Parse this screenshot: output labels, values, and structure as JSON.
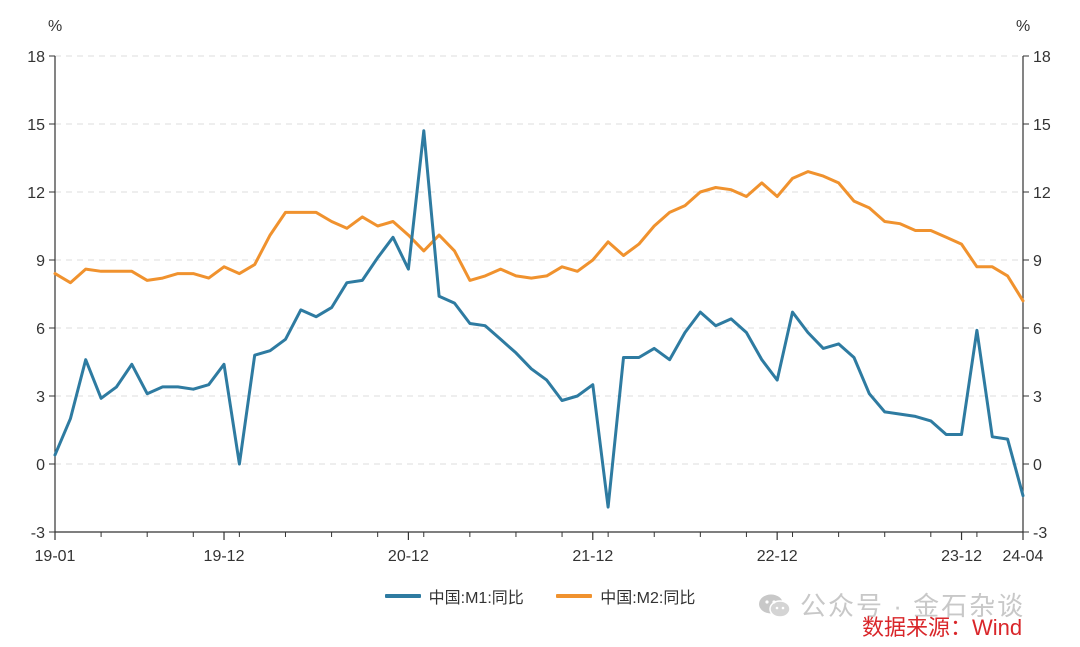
{
  "chart_data": {
    "type": "line",
    "left_unit": "%",
    "right_unit": "%",
    "ylim": [
      -3,
      18
    ],
    "yticks": [
      -3,
      0,
      3,
      6,
      9,
      12,
      15,
      18
    ],
    "grid": "horizontal dashed",
    "legend_position": "bottom",
    "x_tick_labels": [
      {
        "label": "19-01",
        "index": 0
      },
      {
        "label": "19-12",
        "index": 11
      },
      {
        "label": "20-12",
        "index": 23
      },
      {
        "label": "21-12",
        "index": 35
      },
      {
        "label": "22-12",
        "index": 47
      },
      {
        "label": "23-12",
        "index": 59
      },
      {
        "label": "24-04",
        "index": 63
      }
    ],
    "x_start": "2019-01",
    "x_end": "2024-04",
    "series": [
      {
        "name": "中国:M1:同比",
        "color": "#2e7ba1",
        "values": [
          0.4,
          2.0,
          4.6,
          2.9,
          3.4,
          4.4,
          3.1,
          3.4,
          3.4,
          3.3,
          3.5,
          4.4,
          0.0,
          4.8,
          5.0,
          5.5,
          6.8,
          6.5,
          6.9,
          8.0,
          8.1,
          9.1,
          10.0,
          8.6,
          14.7,
          7.4,
          7.1,
          6.2,
          6.1,
          5.5,
          4.9,
          4.2,
          3.7,
          2.8,
          3.0,
          3.5,
          -1.9,
          4.7,
          4.7,
          5.1,
          4.6,
          5.8,
          6.7,
          6.1,
          6.4,
          5.8,
          4.6,
          3.7,
          6.7,
          5.8,
          5.1,
          5.3,
          4.7,
          3.1,
          2.3,
          2.2,
          2.1,
          1.9,
          1.3,
          1.3,
          5.9,
          1.2,
          1.1,
          -1.4
        ]
      },
      {
        "name": "中国:M2:同比",
        "color": "#f0922e",
        "values": [
          8.4,
          8.0,
          8.6,
          8.5,
          8.5,
          8.5,
          8.1,
          8.2,
          8.4,
          8.4,
          8.2,
          8.7,
          8.4,
          8.8,
          10.1,
          11.1,
          11.1,
          11.1,
          10.7,
          10.4,
          10.9,
          10.5,
          10.7,
          10.1,
          9.4,
          10.1,
          9.4,
          8.1,
          8.3,
          8.6,
          8.3,
          8.2,
          8.3,
          8.7,
          8.5,
          9.0,
          9.8,
          9.2,
          9.7,
          10.5,
          11.1,
          11.4,
          12.0,
          12.2,
          12.1,
          11.8,
          12.4,
          11.8,
          12.6,
          12.9,
          12.7,
          12.4,
          11.6,
          11.3,
          10.7,
          10.6,
          10.3,
          10.3,
          10.0,
          9.7,
          8.7,
          8.7,
          8.3,
          7.2
        ]
      }
    ]
  },
  "watermark": {
    "text": "公众号 · 金石杂谈",
    "icon": "wechat-icon"
  },
  "source_note": "数据来源：Wind"
}
